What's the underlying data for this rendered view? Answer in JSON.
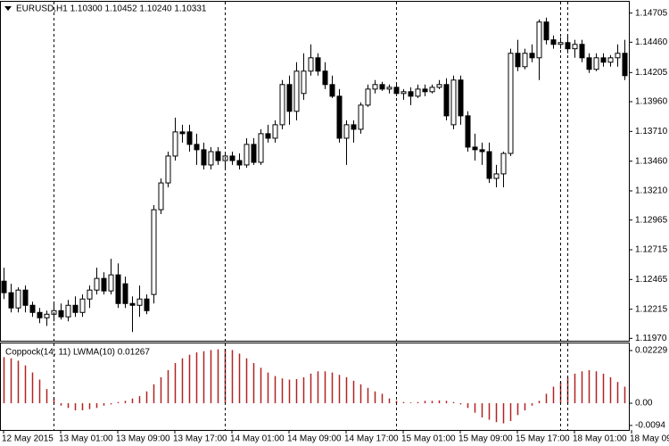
{
  "chart_data": [
    {
      "type": "candlestick",
      "title": "EURUSD,H1  1.10300 1.10452 1.10240 1.10331",
      "categories": [
        "12 May 2015",
        null,
        null,
        null,
        null,
        null,
        null,
        null,
        "13 May 01:00",
        null,
        null,
        null,
        null,
        null,
        null,
        null,
        "13 May 09:00",
        null,
        null,
        null,
        null,
        null,
        null,
        null,
        "13 May 17:00",
        null,
        null,
        null,
        null,
        null,
        null,
        null,
        "14 May 01:00",
        null,
        null,
        null,
        null,
        null,
        null,
        null,
        "14 May 09:00",
        null,
        null,
        null,
        null,
        null,
        null,
        null,
        "14 May 17:00",
        null,
        null,
        null,
        null,
        null,
        null,
        null,
        "15 May 01:00",
        null,
        null,
        null,
        null,
        null,
        null,
        null,
        "15 May 09:00",
        null,
        null,
        null,
        null,
        null,
        null,
        null,
        "15 May 17:00",
        null,
        null,
        null,
        null,
        null,
        null,
        null,
        "18 May 01:00",
        null,
        null,
        null,
        null,
        null,
        null,
        null,
        "18 May 09:00"
      ],
      "open": [
        1.12451,
        1.12354,
        1.12226,
        1.12376,
        1.12248,
        1.12188,
        1.12143,
        1.12173,
        1.12203,
        1.12151,
        1.12248,
        1.12188,
        1.12301,
        1.12376,
        1.12474,
        1.12369,
        1.12504,
        1.12429,
        1.12263,
        1.12248,
        1.12301,
        1.12339,
        1.13052,
        1.13277,
        1.13503,
        1.13706,
        1.13706,
        1.13601,
        1.13556,
        1.13428,
        1.1354,
        1.13465,
        1.13503,
        1.13465,
        1.13428,
        1.13601,
        1.1345,
        1.13691,
        1.13653,
        1.13766,
        1.14104,
        1.13879,
        1.14029,
        1.14217,
        1.14329,
        1.14217,
        1.14104,
        1.14006,
        1.13653,
        1.13766,
        1.13728,
        1.13931,
        1.14066,
        1.14104,
        1.14066,
        1.14081,
        1.14029,
        1.14044,
        1.14006,
        1.14066,
        1.14044,
        1.14081,
        1.14104,
        1.13766,
        1.14142,
        1.13841,
        1.13578,
        1.13556,
        1.1354,
        1.13315,
        1.13353,
        1.13525,
        1.14367,
        1.14254,
        1.14367,
        1.14329,
        1.1463,
        1.1448,
        1.14442,
        1.14457,
        1.14405,
        1.14442,
        1.14329,
        1.14232,
        1.14329,
        1.14292,
        1.14329,
        1.14367,
        null
      ],
      "high": [
        1.12564,
        1.12429,
        1.12399,
        1.12414,
        1.12278,
        1.12226,
        1.12203,
        1.12263,
        1.12263,
        1.12293,
        1.12323,
        1.12339,
        1.12414,
        1.12564,
        1.12526,
        1.12639,
        1.12601,
        1.12489,
        1.12323,
        1.12414,
        1.12339,
        1.1309,
        1.13315,
        1.1354,
        1.13826,
        1.13766,
        1.13766,
        1.13691,
        1.13616,
        1.13578,
        1.13578,
        1.1354,
        1.1354,
        1.13525,
        1.13653,
        1.13653,
        1.13728,
        1.13766,
        1.13803,
        1.14142,
        1.14179,
        1.14292,
        1.14367,
        1.14442,
        1.14367,
        1.14292,
        1.14179,
        1.14066,
        1.13803,
        1.13803,
        1.13954,
        1.14104,
        1.14142,
        1.14127,
        1.14104,
        1.14104,
        1.14066,
        1.14081,
        1.14104,
        1.14104,
        1.14104,
        1.14142,
        1.14157,
        1.14179,
        1.14179,
        1.13879,
        1.13691,
        1.13616,
        1.13616,
        1.13428,
        1.1354,
        1.14405,
        1.1448,
        1.14405,
        1.14442,
        1.14652,
        1.14667,
        1.14517,
        1.14502,
        1.14517,
        1.1448,
        1.1448,
        1.14367,
        1.14367,
        1.14367,
        1.14352,
        1.14442,
        1.1448,
        null
      ],
      "low": [
        1.12301,
        1.12188,
        1.12188,
        1.12188,
        1.12151,
        1.12098,
        1.12075,
        1.12113,
        1.12128,
        1.12113,
        1.12151,
        1.12151,
        1.12226,
        1.12339,
        1.12339,
        1.12339,
        1.12226,
        1.12226,
        1.12023,
        1.12151,
        1.12173,
        1.12263,
        1.13015,
        1.1324,
        1.13465,
        1.13616,
        1.1354,
        1.13428,
        1.1339,
        1.1339,
        1.13428,
        1.1339,
        1.13428,
        1.1339,
        1.13405,
        1.13428,
        1.13428,
        1.13616,
        1.13616,
        1.13728,
        1.13766,
        1.13803,
        1.13976,
        1.14179,
        1.14179,
        1.14066,
        1.13991,
        1.13616,
        1.13428,
        1.13616,
        1.13691,
        1.13916,
        1.14029,
        1.14051,
        1.14029,
        1.14006,
        1.13976,
        1.13931,
        1.13991,
        1.14006,
        1.14029,
        1.14066,
        1.13803,
        1.13728,
        1.13766,
        1.1354,
        1.13465,
        1.13428,
        1.13277,
        1.1324,
        1.1324,
        1.13503,
        1.14217,
        1.14232,
        1.14292,
        1.14142,
        1.14442,
        1.14405,
        1.14405,
        1.14367,
        1.14329,
        1.14292,
        1.14202,
        1.14217,
        1.14254,
        1.14254,
        1.14254,
        1.14142,
        null
      ],
      "close": [
        1.12354,
        1.12226,
        1.12376,
        1.12248,
        1.12188,
        1.12143,
        1.12173,
        1.12203,
        1.12151,
        1.12248,
        1.12188,
        1.12301,
        1.12376,
        1.12474,
        1.12369,
        1.12504,
        1.12263,
        1.12263,
        1.12248,
        1.12301,
        1.12203,
        1.13052,
        1.13277,
        1.13503,
        1.13706,
        1.13691,
        1.13601,
        1.13556,
        1.13428,
        1.1354,
        1.13465,
        1.13503,
        1.13465,
        1.13428,
        1.13601,
        1.1345,
        1.13691,
        1.13653,
        1.13766,
        1.14104,
        1.13879,
        1.14217,
        1.14217,
        1.14329,
        1.14217,
        1.14104,
        1.14006,
        1.13653,
        1.13766,
        1.13728,
        1.13931,
        1.14066,
        1.14104,
        1.14066,
        1.14081,
        1.14029,
        1.14044,
        1.14006,
        1.14066,
        1.14044,
        1.14081,
        1.14104,
        1.13841,
        1.14142,
        1.13841,
        1.13578,
        1.13556,
        1.1354,
        1.13315,
        1.13353,
        1.13525,
        1.14367,
        1.14254,
        1.14367,
        1.14329,
        1.1463,
        1.1448,
        1.14442,
        1.14457,
        1.14405,
        1.14442,
        1.14329,
        1.14232,
        1.14329,
        1.14292,
        1.14329,
        1.14367,
        1.14179,
        null
      ],
      "up_color": "#ffffff",
      "down_color": "#000000",
      "ylim": [
        1.1195,
        1.148
      ],
      "yticks": [
        1.14705,
        {
          "value": 1.1446,
          "label": "1.14460"
        },
        1.14205,
        {
          "value": 1.1396,
          "label": "1.13960"
        },
        {
          "value": 1.1371,
          "label": "1.13710"
        },
        {
          "value": 1.1346,
          "label": "1.13460"
        },
        {
          "value": 1.1321,
          "label": "1.13210"
        },
        1.12965,
        1.12715,
        1.12465,
        1.12215,
        {
          "value": 1.1197,
          "label": "1.11970"
        }
      ]
    },
    {
      "type": "bar",
      "title": "Coppock(14, 11) LWMA(10) 0.01267",
      "color": "#b22222",
      "values": [
        0.0195,
        0.019,
        0.018,
        0.016,
        0.013,
        0.01,
        0.006,
        0.002,
        -0.001,
        -0.002,
        -0.003,
        -0.003,
        -0.0025,
        -0.002,
        -0.001,
        -0.0005,
        0.0005,
        0.001,
        0.002,
        0.003,
        0.005,
        0.008,
        0.011,
        0.014,
        0.017,
        0.019,
        0.0205,
        0.0215,
        0.022,
        0.0225,
        0.0228,
        0.023,
        0.0225,
        0.021,
        0.019,
        0.017,
        0.015,
        0.013,
        0.0115,
        0.0105,
        0.01,
        0.0102,
        0.011,
        0.0125,
        0.0135,
        0.0135,
        0.013,
        0.012,
        0.011,
        0.0095,
        0.008,
        0.0065,
        0.005,
        0.004,
        0.002,
        0.001,
        0.0005,
        0.0003,
        0.0005,
        0.001,
        0.001,
        0.0012,
        0.001,
        0.0005,
        -0.0005,
        -0.002,
        -0.004,
        -0.006,
        -0.007,
        -0.008,
        -0.0085,
        -0.0075,
        -0.005,
        -0.003,
        -0.001,
        0.001,
        0.004,
        0.007,
        0.009,
        0.011,
        0.0125,
        0.0135,
        0.014,
        0.0135,
        0.0125,
        0.011,
        0.009,
        0.007,
        null
      ],
      "ylim": [
        -0.0113,
        0.0253
      ],
      "yticks": [
        0.02229,
        {
          "value": 0,
          "label": "0.00"
        },
        -0.0094
      ]
    }
  ]
}
